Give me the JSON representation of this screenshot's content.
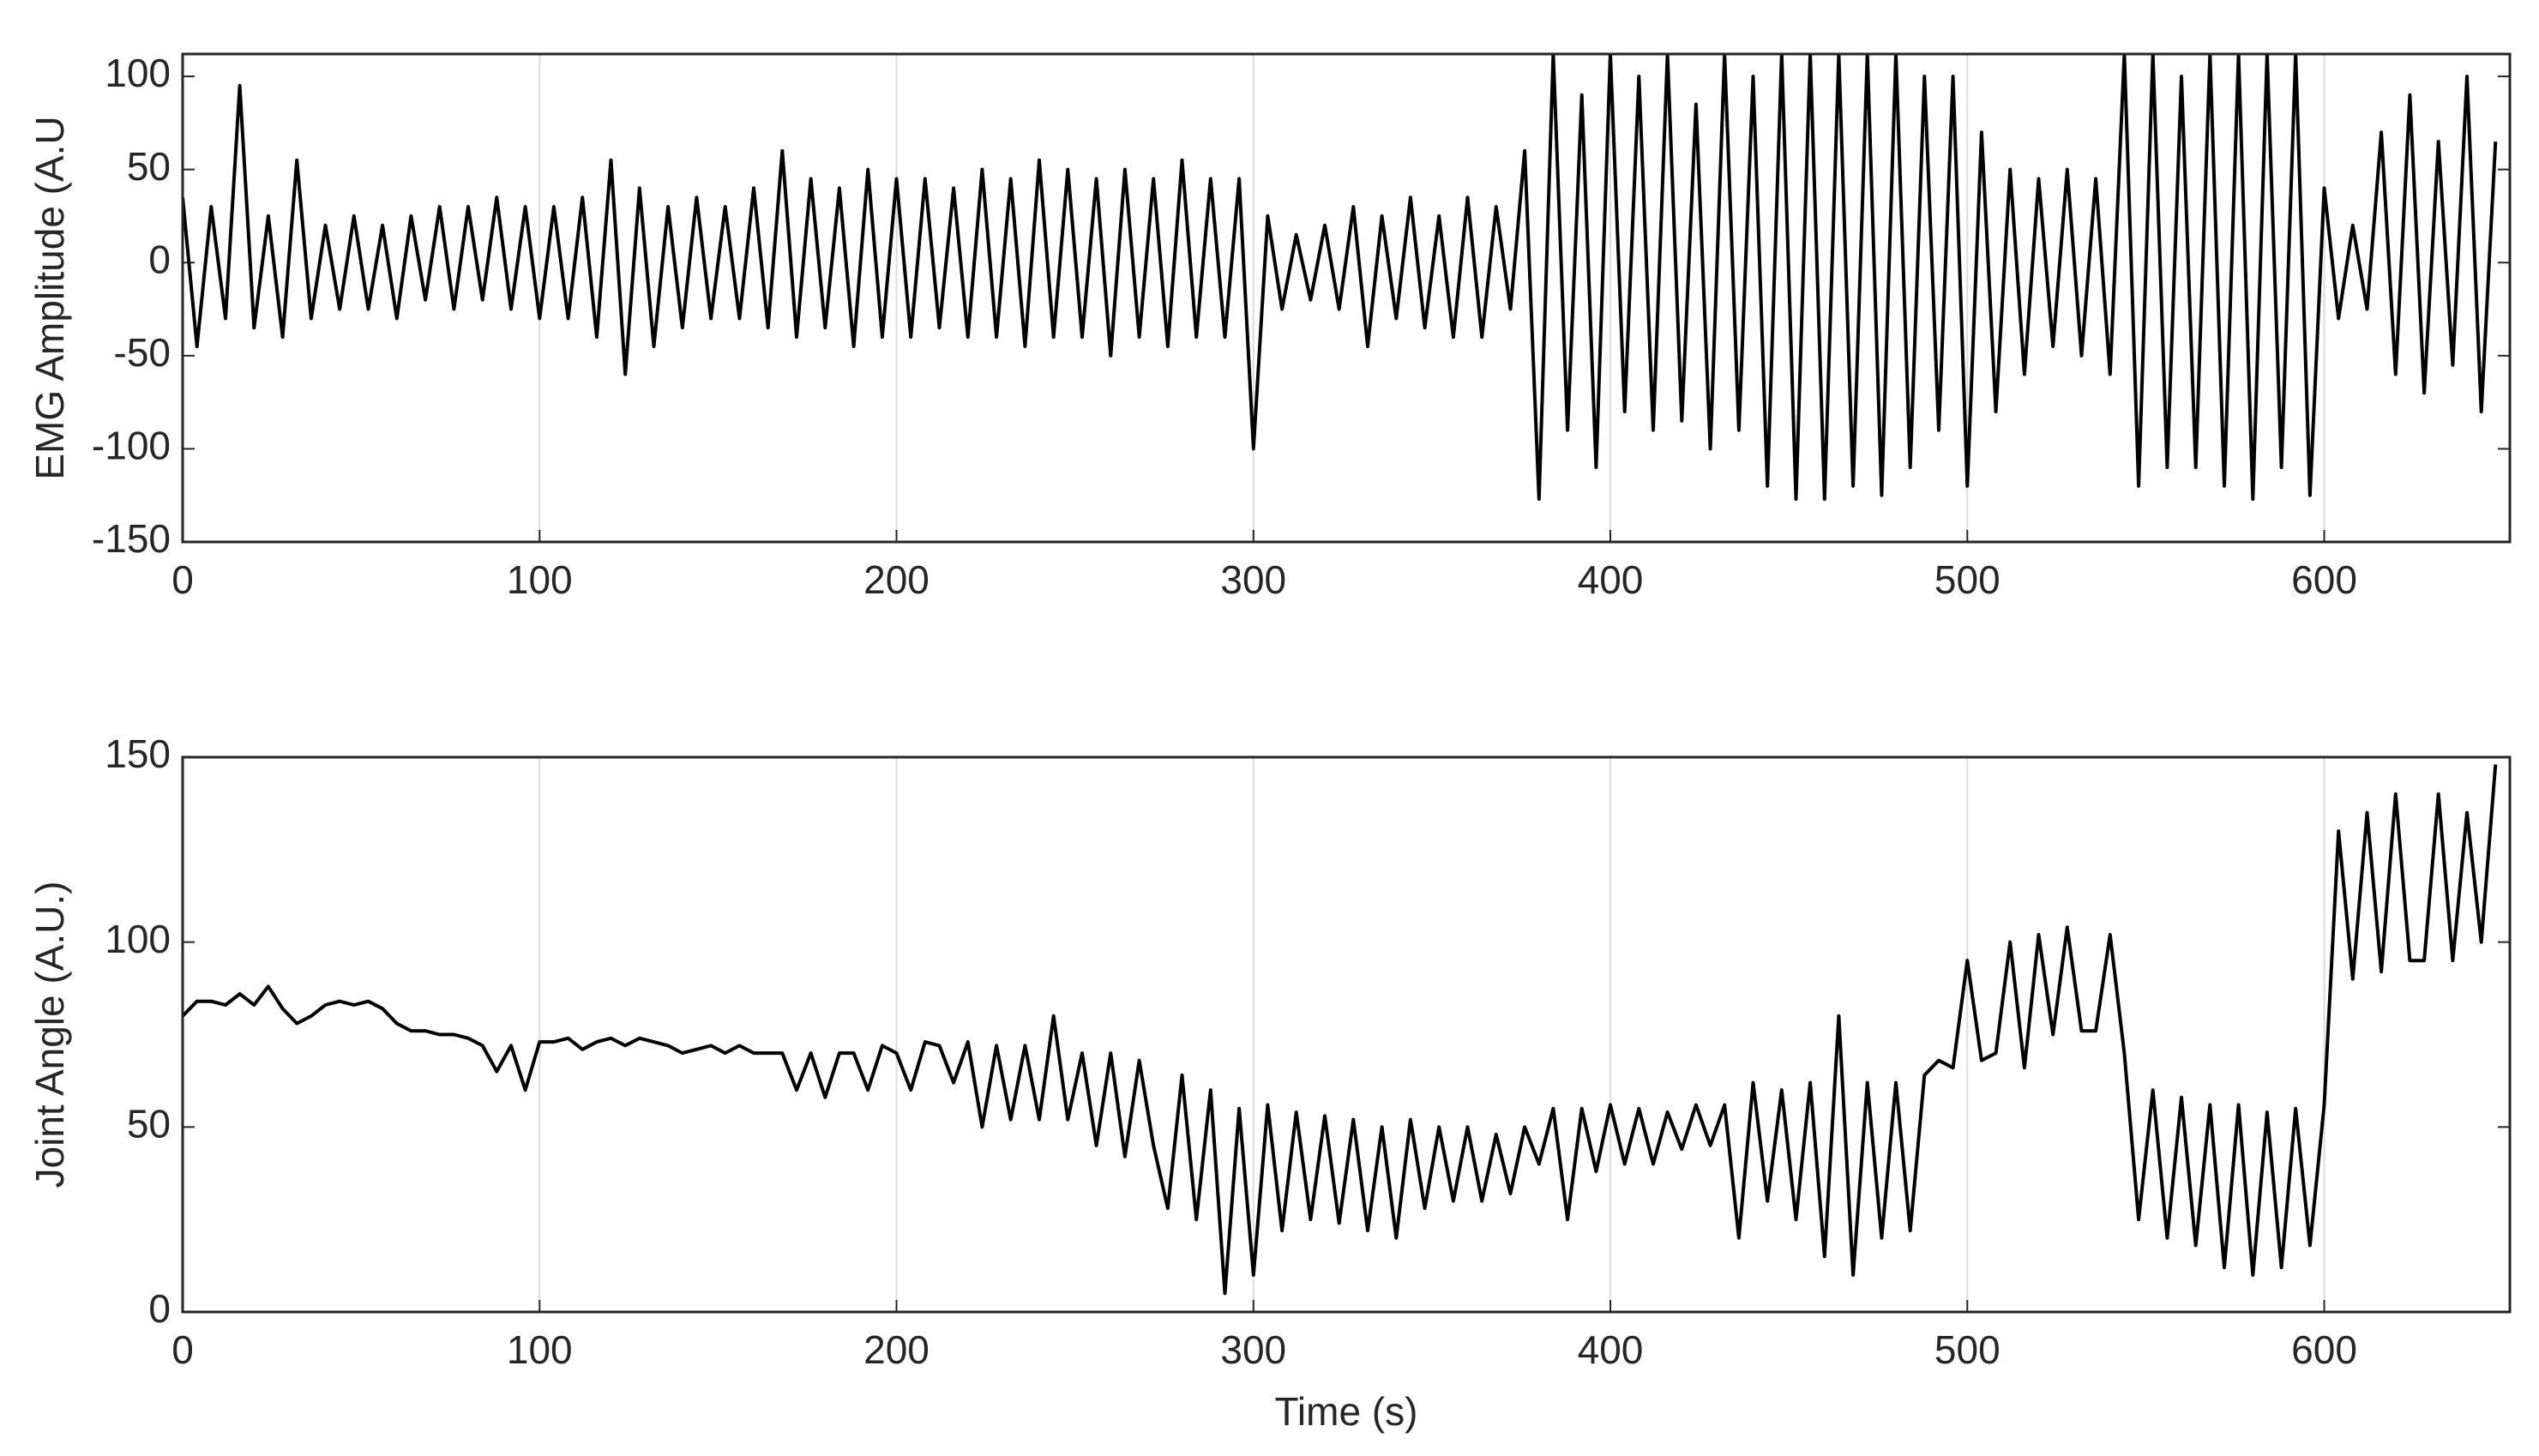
{
  "chart_data": [
    {
      "type": "line",
      "ylabel": "EMG Amplitude (A.U",
      "color": "#000000",
      "grid": "x",
      "xlim": [
        0,
        652
      ],
      "ylim": [
        -150,
        112
      ],
      "xticks": [
        0,
        100,
        200,
        300,
        400,
        500,
        600
      ],
      "yticks": [
        -150,
        -100,
        -50,
        0,
        50,
        100
      ],
      "x": [
        0,
        4,
        8,
        12,
        16,
        20,
        24,
        28,
        32,
        36,
        40,
        44,
        48,
        52,
        56,
        60,
        64,
        68,
        72,
        76,
        80,
        84,
        88,
        92,
        96,
        100,
        104,
        108,
        112,
        116,
        120,
        124,
        128,
        132,
        136,
        140,
        144,
        148,
        152,
        156,
        160,
        164,
        168,
        172,
        176,
        180,
        184,
        188,
        192,
        196,
        200,
        204,
        208,
        212,
        216,
        220,
        224,
        228,
        232,
        236,
        240,
        244,
        248,
        252,
        256,
        260,
        264,
        268,
        272,
        276,
        280,
        284,
        288,
        292,
        296,
        300,
        304,
        308,
        312,
        316,
        320,
        324,
        328,
        332,
        336,
        340,
        344,
        348,
        352,
        356,
        360,
        364,
        368,
        372,
        376,
        380,
        384,
        388,
        392,
        396,
        400,
        404,
        408,
        412,
        416,
        420,
        424,
        428,
        432,
        436,
        440,
        444,
        448,
        452,
        456,
        460,
        464,
        468,
        472,
        476,
        480,
        484,
        488,
        492,
        496,
        500,
        504,
        508,
        512,
        516,
        520,
        524,
        528,
        532,
        536,
        540,
        544,
        548,
        552,
        556,
        560,
        564,
        568,
        572,
        576,
        580,
        584,
        588,
        592,
        596,
        600,
        604,
        608,
        612,
        616,
        620,
        624,
        628,
        632,
        636,
        640,
        644,
        648
      ],
      "values": [
        35,
        -45,
        30,
        -30,
        95,
        -35,
        25,
        -40,
        55,
        -30,
        20,
        -25,
        25,
        -25,
        20,
        -30,
        25,
        -20,
        30,
        -25,
        30,
        -20,
        35,
        -25,
        30,
        -30,
        30,
        -30,
        35,
        -40,
        55,
        -60,
        40,
        -45,
        30,
        -35,
        35,
        -30,
        30,
        -30,
        40,
        -35,
        60,
        -40,
        45,
        -35,
        40,
        -45,
        50,
        -40,
        45,
        -40,
        45,
        -35,
        40,
        -40,
        50,
        -40,
        45,
        -45,
        55,
        -40,
        50,
        -40,
        45,
        -50,
        50,
        -40,
        45,
        -45,
        55,
        -40,
        45,
        -40,
        45,
        -100,
        25,
        -25,
        15,
        -20,
        20,
        -25,
        30,
        -45,
        25,
        -30,
        35,
        -35,
        25,
        -40,
        35,
        -40,
        30,
        -25,
        60,
        -127,
        112,
        -90,
        90,
        -110,
        112,
        -80,
        100,
        -90,
        112,
        -85,
        85,
        -100,
        112,
        -90,
        100,
        -120,
        112,
        -127,
        112,
        -127,
        112,
        -120,
        112,
        -125,
        112,
        -110,
        100,
        -90,
        100,
        -120,
        70,
        -80,
        50,
        -60,
        45,
        -45,
        50,
        -50,
        45,
        -60,
        112,
        -120,
        112,
        -110,
        100,
        -110,
        112,
        -120,
        112,
        -127,
        112,
        -110,
        112,
        -125,
        40,
        -30,
        20,
        -25,
        70,
        -60,
        90,
        -70,
        65,
        -55,
        100,
        -80,
        65
      ]
    },
    {
      "type": "line",
      "ylabel": "Joint Angle (A.U.)",
      "xlabel": "Time (s)",
      "color": "#000000",
      "grid": "x",
      "xlim": [
        0,
        652
      ],
      "ylim": [
        0,
        150
      ],
      "xticks": [
        0,
        100,
        200,
        300,
        400,
        500,
        600
      ],
      "yticks": [
        0,
        50,
        100,
        150
      ],
      "x": [
        0,
        4,
        8,
        12,
        16,
        20,
        24,
        28,
        32,
        36,
        40,
        44,
        48,
        52,
        56,
        60,
        64,
        68,
        72,
        76,
        80,
        84,
        88,
        92,
        96,
        100,
        104,
        108,
        112,
        116,
        120,
        124,
        128,
        132,
        136,
        140,
        144,
        148,
        152,
        156,
        160,
        164,
        168,
        172,
        176,
        180,
        184,
        188,
        192,
        196,
        200,
        204,
        208,
        212,
        216,
        220,
        224,
        228,
        232,
        236,
        240,
        244,
        248,
        252,
        256,
        260,
        264,
        268,
        272,
        276,
        280,
        284,
        288,
        292,
        296,
        300,
        304,
        308,
        312,
        316,
        320,
        324,
        328,
        332,
        336,
        340,
        344,
        348,
        352,
        356,
        360,
        364,
        368,
        372,
        376,
        380,
        384,
        388,
        392,
        396,
        400,
        404,
        408,
        412,
        416,
        420,
        424,
        428,
        432,
        436,
        440,
        444,
        448,
        452,
        456,
        460,
        464,
        468,
        472,
        476,
        480,
        484,
        488,
        492,
        496,
        500,
        504,
        508,
        512,
        516,
        520,
        524,
        528,
        532,
        536,
        540,
        544,
        548,
        552,
        556,
        560,
        564,
        568,
        572,
        576,
        580,
        584,
        588,
        592,
        596,
        600,
        604,
        608,
        612,
        616,
        620,
        624,
        628,
        632,
        636,
        640,
        644,
        648
      ],
      "values": [
        80,
        84,
        84,
        83,
        86,
        83,
        88,
        82,
        78,
        80,
        83,
        84,
        83,
        84,
        82,
        78,
        76,
        76,
        75,
        75,
        74,
        72,
        65,
        72,
        60,
        73,
        73,
        74,
        71,
        73,
        74,
        72,
        74,
        73,
        72,
        70,
        71,
        72,
        70,
        72,
        70,
        70,
        70,
        60,
        70,
        58,
        70,
        70,
        60,
        72,
        70,
        60,
        73,
        72,
        62,
        73,
        50,
        72,
        52,
        72,
        52,
        80,
        52,
        70,
        45,
        70,
        42,
        68,
        45,
        28,
        64,
        25,
        60,
        5,
        55,
        10,
        56,
        22,
        54,
        25,
        53,
        24,
        52,
        22,
        50,
        20,
        52,
        28,
        50,
        30,
        50,
        30,
        48,
        32,
        50,
        40,
        55,
        25,
        55,
        38,
        56,
        40,
        55,
        40,
        54,
        44,
        56,
        45,
        56,
        20,
        62,
        30,
        60,
        25,
        62,
        15,
        80,
        10,
        62,
        20,
        62,
        22,
        64,
        68,
        66,
        95,
        68,
        70,
        100,
        66,
        102,
        75,
        104,
        76,
        76,
        102,
        70,
        25,
        60,
        20,
        58,
        18,
        56,
        12,
        56,
        10,
        54,
        12,
        55,
        18,
        56,
        130,
        90,
        135,
        92,
        140,
        95,
        95,
        140,
        95,
        135,
        100,
        148
      ]
    }
  ]
}
